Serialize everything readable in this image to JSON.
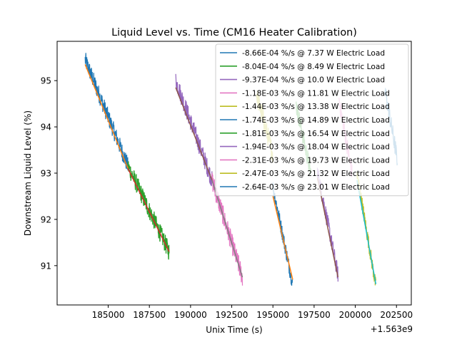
{
  "chart_data": {
    "type": "line",
    "title": "Liquid Level vs. Time (CM16 Heater Calibration)",
    "xlabel": "Unix Time (s)",
    "ylabel": "Downstream Liquid Level (%)",
    "x_offset_label": "+1.563e9",
    "xlim": [
      181900,
      203400
    ],
    "ylim": [
      90.15,
      95.85
    ],
    "xticks": [
      185000,
      187500,
      190000,
      192500,
      195000,
      197500,
      200000,
      202500
    ],
    "xtick_labels": [
      "185000",
      "187500",
      "190000",
      "192500",
      "195000",
      "197500",
      "200000",
      "202500"
    ],
    "yticks": [
      91,
      92,
      93,
      94,
      95
    ],
    "ytick_labels": [
      "91",
      "92",
      "93",
      "94",
      "95"
    ],
    "grid": false,
    "legend_position": "top-right",
    "series": [
      {
        "name": "-8.66E-04 %/s @ 7.37 W Electric Load",
        "color": "#1f77b4",
        "x": [
          183600,
          186200
        ],
        "y": [
          95.45,
          93.15
        ],
        "noise": 0.19
      },
      {
        "name": "-8.04E-04 %/s @ 8.49 W Electric Load",
        "color": "#2ca02c",
        "x": [
          186200,
          188700
        ],
        "y": [
          93.15,
          91.3
        ],
        "noise": 0.2
      },
      {
        "name": "-9.37E-04 %/s @ 10.0 W Electric Load",
        "color": "#9467bd",
        "x": [
          189100,
          191300
        ],
        "y": [
          95.0,
          92.85
        ],
        "noise": 0.2
      },
      {
        "name": "-1.18E-03 %/s @ 11.81 W Electric Load",
        "color": "#e377c2",
        "x": [
          191300,
          193150
        ],
        "y": [
          92.85,
          90.75
        ],
        "noise": 0.22
      },
      {
        "name": "-1.44E-03 %/s @ 13.38 W Electric Load",
        "color": "#bcbd22",
        "x": [
          194000,
          195000
        ],
        "y": [
          94.7,
          93.4
        ],
        "noise": 0.22
      },
      {
        "name": "-1.74E-03 %/s @ 14.89 W Electric Load",
        "color": "#1f77b4",
        "x": [
          195000,
          196200
        ],
        "y": [
          92.7,
          90.6
        ],
        "noise": 0.16
      },
      {
        "name": "-1.81E-03 %/s @ 16.54 W Electric Load",
        "color": "#2ca02c",
        "x": [
          196400,
          197300
        ],
        "y": [
          94.5,
          93.0
        ],
        "noise": 0.2
      },
      {
        "name": "-1.94E-03 %/s @ 18.04 W Electric Load",
        "color": "#9467bd",
        "x": [
          197700,
          198950
        ],
        "y": [
          93.05,
          90.8
        ],
        "noise": 0.18
      },
      {
        "name": "-2.31E-03 %/s @ 19.73 W Electric Load",
        "color": "#e377c2",
        "x": [
          199000,
          199800
        ],
        "y": [
          94.6,
          93.0
        ],
        "noise": 0.2
      },
      {
        "name": "-2.47E-03 %/s @ 21.32 W Electric Load",
        "color": "#bcbd22",
        "x": [
          200100,
          201250
        ],
        "y": [
          93.0,
          90.55
        ],
        "noise": 0.16
      },
      {
        "name": "-2.64E-03 %/s @ 23.01 W Electric Load",
        "color": "#1f77b4",
        "x": [
          201800,
          202550
        ],
        "y": [
          94.8,
          93.3
        ],
        "noise": 0.2
      }
    ],
    "fits": [
      {
        "color": "#ff7f0e",
        "x": [
          183600,
          186200
        ],
        "y": [
          95.35,
          93.1
        ]
      },
      {
        "color": "#d62728",
        "x": [
          186200,
          188700
        ],
        "y": [
          93.1,
          91.3
        ]
      },
      {
        "color": "#8c564b",
        "x": [
          189100,
          191300
        ],
        "y": [
          94.85,
          92.85
        ]
      },
      {
        "color": "#7f7f7f",
        "x": [
          191300,
          193150
        ],
        "y": [
          92.85,
          90.75
        ]
      },
      {
        "color": "#ff7f0e",
        "x": [
          195000,
          196200
        ],
        "y": [
          92.5,
          90.7
        ]
      },
      {
        "color": "#8c564b",
        "x": [
          197700,
          198950
        ],
        "y": [
          92.9,
          90.75
        ]
      },
      {
        "color": "#17becf",
        "x": [
          200100,
          201250
        ],
        "y": [
          92.85,
          90.6
        ]
      }
    ]
  }
}
